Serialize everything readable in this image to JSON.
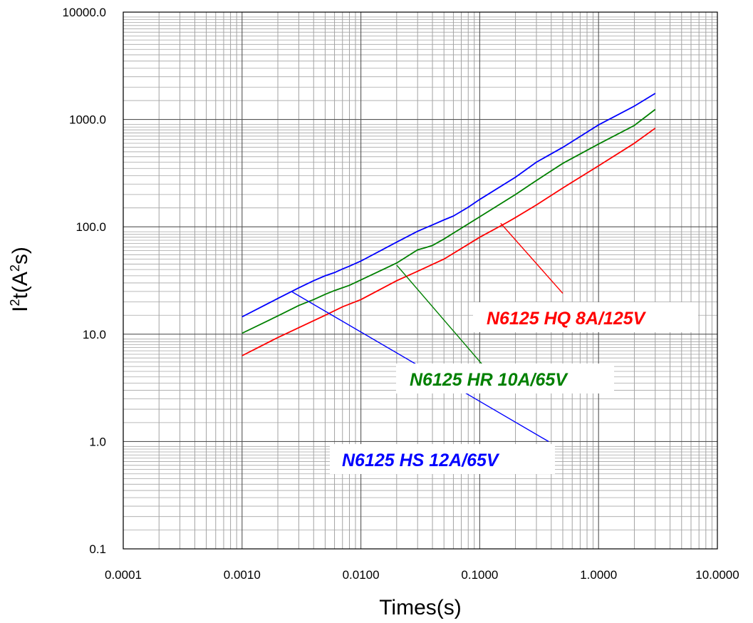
{
  "chart_data": {
    "type": "line",
    "title": "",
    "xlabel": "Times(s)",
    "ylabel_base": "I",
    "ylabel_sup1": "2",
    "ylabel_mid": "t(A",
    "ylabel_sup2": "2",
    "ylabel_end": "s)",
    "x_scale": "log",
    "y_scale": "log",
    "xlim": [
      0.0001,
      10
    ],
    "ylim": [
      0.1,
      10000
    ],
    "grid": true,
    "x_ticks": [
      {
        "value": 0.0001,
        "label": "0.0001"
      },
      {
        "value": 0.001,
        "label": "0.0010"
      },
      {
        "value": 0.01,
        "label": "0.0100"
      },
      {
        "value": 0.1,
        "label": "0.1000"
      },
      {
        "value": 1,
        "label": "1.0000"
      },
      {
        "value": 10,
        "label": "10.0000"
      }
    ],
    "y_ticks": [
      {
        "value": 0.1,
        "label": "0.1"
      },
      {
        "value": 1,
        "label": "1.0"
      },
      {
        "value": 10,
        "label": "10.0"
      },
      {
        "value": 100,
        "label": "100.0"
      },
      {
        "value": 1000,
        "label": "1000.0"
      },
      {
        "value": 10000,
        "label": "10000.0"
      }
    ],
    "series": [
      {
        "name": "N6125 HS 12A/65V",
        "label_text": "N6125 HS 12A/65V",
        "color": "#0000ff",
        "x": [
          0.001,
          0.002,
          0.003,
          0.004,
          0.005,
          0.006,
          0.007,
          0.008,
          0.01,
          0.02,
          0.03,
          0.04,
          0.05,
          0.06,
          0.08,
          0.1,
          0.2,
          0.3,
          0.5,
          1,
          2,
          3
        ],
        "y": [
          14.5,
          21.5,
          27,
          31.5,
          35,
          37.5,
          40.5,
          43,
          48,
          72,
          91,
          104,
          116,
          126,
          152,
          180,
          290,
          400,
          550,
          890,
          1330,
          1750
        ],
        "label_anchor": {
          "x": 0.38,
          "y": 1.0
        },
        "leader_to": {
          "x": 0.0026,
          "y": 25
        }
      },
      {
        "name": "N6125 HR 10A/65V",
        "label_text": "N6125 HR 10A/65V",
        "color": "#008000",
        "x": [
          0.001,
          0.002,
          0.003,
          0.004,
          0.005,
          0.006,
          0.008,
          0.01,
          0.02,
          0.03,
          0.035,
          0.04,
          0.05,
          0.1,
          0.2,
          0.3,
          0.5,
          1,
          2,
          3
        ],
        "y": [
          10.2,
          14.8,
          18.5,
          21,
          23.5,
          25.5,
          28.5,
          32,
          46,
          61,
          64,
          67,
          77,
          124,
          200,
          270,
          390,
          590,
          880,
          1240
        ],
        "label_anchor": {
          "x": 0.107,
          "y": 5.1
        },
        "leader_to": {
          "x": 0.02,
          "y": 44
        }
      },
      {
        "name": "N6125 HQ 8A/125V",
        "label_text": "N6125 HQ 8A/125V",
        "color": "#ff0000",
        "x": [
          0.001,
          0.002,
          0.003,
          0.005,
          0.007,
          0.01,
          0.02,
          0.03,
          0.05,
          0.1,
          0.17,
          0.2,
          0.3,
          0.5,
          1,
          2,
          3
        ],
        "y": [
          6.3,
          9.3,
          11.5,
          15,
          18,
          21,
          31.5,
          38.5,
          50,
          80,
          110,
          122,
          160,
          230,
          370,
          600,
          830
        ],
        "label_anchor": {
          "x": 0.5,
          "y": 24
        },
        "leader_to": {
          "x": 0.15,
          "y": 108
        }
      }
    ]
  }
}
